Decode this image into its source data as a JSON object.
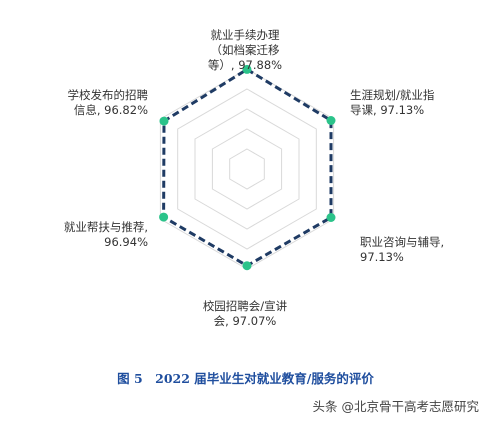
{
  "chart_data": {
    "type": "radar",
    "categories": [
      "就业手续办理\n（如档案迁移\n等）",
      "生涯规划/就业指\n导课",
      "职业咨询与辅导",
      "校园招聘会/宣讲\n会",
      "就业帮扶与推荐",
      "学校发布的招聘\n信息"
    ],
    "values": [
      97.88,
      97.13,
      97.13,
      97.07,
      96.94,
      96.82
    ],
    "value_labels": [
      "97.88%",
      "97.13%",
      "97.13%",
      "97.07%",
      "96.94%",
      "96.82%"
    ],
    "rings": 5,
    "grid": true,
    "series_color": "#1f3b64",
    "marker_color": "#2bc38a",
    "grid_color": "#d9d9d9"
  },
  "caption": "图 5　2022 届毕业生对就业教育/服务的评价",
  "watermark": "头条 @北京骨干高考志愿研究"
}
